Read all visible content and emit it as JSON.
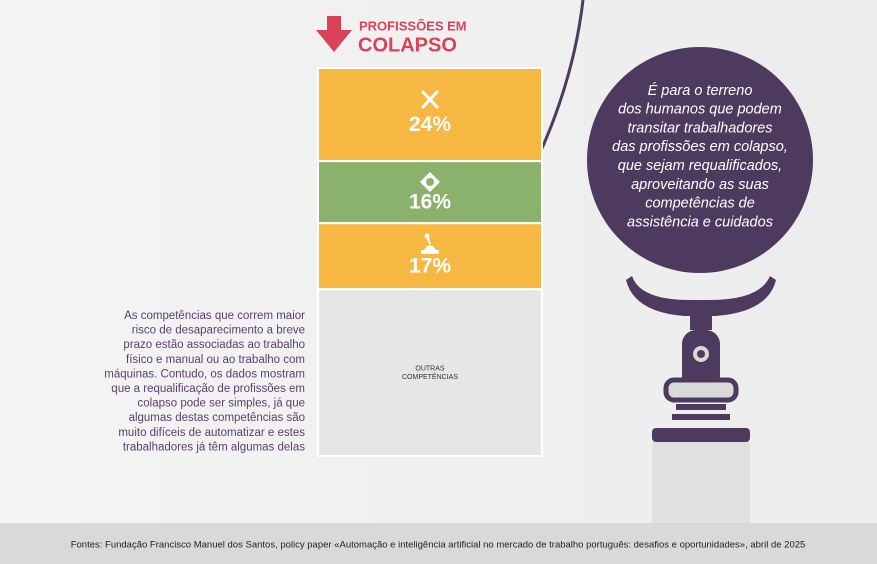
{
  "chart_data": {
    "type": "stacked-column",
    "title_lines": [
      "PROFISSÕES EM",
      "COLAPSO"
    ],
    "categories": [
      null,
      null,
      null,
      "OUTRAS COMPETÊNCIAS"
    ],
    "values": [
      24,
      16,
      17,
      43
    ],
    "value_labels": [
      "24%",
      "16%",
      "17%",
      null
    ],
    "colors": [
      "#f6b843",
      "#8ab26d",
      "#f6b843",
      "#e6e6e6"
    ],
    "ylim": [
      0,
      100
    ]
  },
  "left_text": [
    "As competências que correm maior",
    "risco de desaparecimento a breve",
    "prazo estão associadas ao trabalho",
    "físico e manual ou ao trabalho com",
    "máquinas. Contudo, os dados mostram",
    "que a requalificação de profissões em",
    "colapso pode ser simples, já que",
    "algumas destas competências são",
    "muito difíceis de automatizar e estes",
    "trabalhadores já têm algumas delas"
  ],
  "bubble_text": [
    "É para o terreno",
    "dos humanos que podem",
    "transitar trabalhadores",
    "das profissões em colapso,",
    "que sejam requalificados,",
    "aproveitando as suas",
    "competências de",
    "assistência e cuidados"
  ],
  "footer": "Fontes: Fundação Francisco Manuel dos Santos, policy paper «Automação e inteligência artificial no mercado de trabalho português: desafios e oportunidades», abril de 2025"
}
